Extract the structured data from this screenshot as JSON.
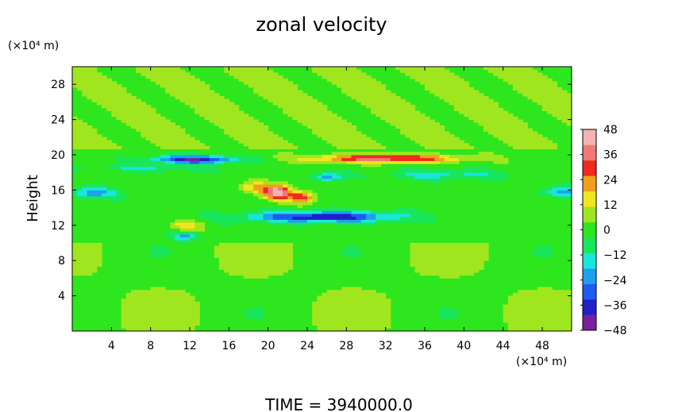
{
  "chart_data": {
    "type": "heatmap",
    "title": "zonal velocity",
    "ylabel": "Height",
    "xunit": "(×10⁴ m)",
    "yunit": "(×10⁴ m)",
    "footer": "TIME  =  3940000.0",
    "xlim": [
      0,
      51
    ],
    "ylim": [
      0,
      30
    ],
    "xticks": [
      "4",
      "8",
      "12",
      "16",
      "20",
      "24",
      "28",
      "32",
      "36",
      "40",
      "44",
      "48"
    ],
    "yticks": [
      "4",
      "8",
      "12",
      "16",
      "20",
      "24",
      "28"
    ],
    "colorbar": {
      "min": -48,
      "max": 48,
      "ticks": [
        "48",
        "36",
        "24",
        "12",
        "0",
        "−12",
        "−24",
        "−36",
        "−48"
      ]
    },
    "field_description": {
      "upper_layer_above_20": 4,
      "jet_core_positive": {
        "x": [
          24,
          40
        ],
        "y": [
          19,
          20
        ],
        "value": 40
      },
      "jet_core_negative_upper": {
        "x": [
          8,
          17
        ],
        "y": [
          19,
          20
        ],
        "value": -40
      },
      "jet_core_negative_lower": {
        "x": [
          18,
          33
        ],
        "y": [
          12.5,
          13.5
        ],
        "value": -42
      },
      "max_positive": {
        "x": 21,
        "y": 15.8,
        "value": 48
      },
      "lower_layer_below_10": 2
    },
    "colors": [
      "#7a1fa2",
      "#2020c8",
      "#1e5cf0",
      "#1ea0f0",
      "#19e6dc",
      "#19e65a",
      "#2ee61e",
      "#a0e61e",
      "#f0e61e",
      "#f0a01e",
      "#f02a1e",
      "#f07878",
      "#f0b4b4"
    ]
  }
}
